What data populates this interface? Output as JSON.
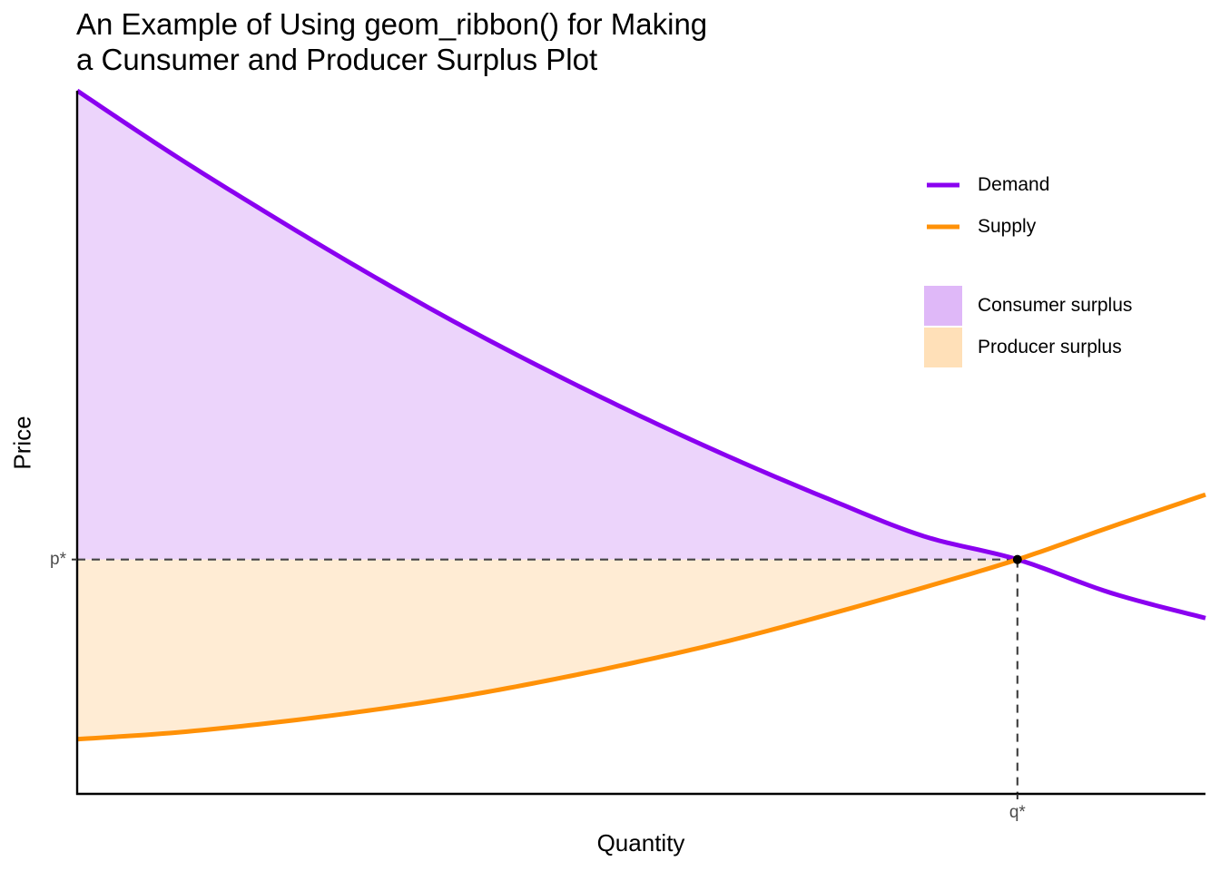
{
  "title_lines": [
    "An Example of Using geom_ribbon() for Making",
    "a Cunsumer and Producer Surplus Plot"
  ],
  "chart_data": {
    "type": "line",
    "title": "An Example of Using geom_ribbon() for Making a Cunsumer and Producer Surplus Plot",
    "xlabel": "Quantity",
    "ylabel": "Price",
    "xlim": [
      0,
      12
    ],
    "ylim": [
      0,
      9
    ],
    "x_ticks": [
      {
        "value": 10,
        "label": "q*"
      }
    ],
    "y_ticks": [
      {
        "value": 3,
        "label": "p*"
      }
    ],
    "series": [
      {
        "name": "Demand",
        "color": "#8A00F0",
        "x": [
          0,
          1,
          2,
          3,
          4,
          5,
          6,
          7,
          8,
          9,
          10,
          11,
          12
        ],
        "y": [
          9.0,
          8.2,
          7.45,
          6.73,
          6.05,
          5.42,
          4.83,
          4.28,
          3.77,
          3.3,
          3.0,
          2.57,
          2.25
        ]
      },
      {
        "name": "Supply",
        "color": "#FF9107",
        "x": [
          0,
          1,
          2,
          3,
          4,
          5,
          6,
          7,
          8,
          9,
          10,
          11,
          12
        ],
        "y": [
          0.7,
          0.78,
          0.9,
          1.05,
          1.23,
          1.45,
          1.7,
          1.98,
          2.3,
          2.64,
          3.0,
          3.42,
          3.83
        ]
      }
    ],
    "areas": [
      {
        "name": "Consumer surplus",
        "color": "#DFB8F8",
        "between": [
          "Demand",
          "p*"
        ],
        "x_range": [
          0,
          10
        ]
      },
      {
        "name": "Producer surplus",
        "color": "#FFE0B8",
        "between": [
          "p*",
          "Supply"
        ],
        "x_range": [
          0,
          10
        ]
      }
    ],
    "equilibrium": {
      "x": 10,
      "y": 3
    },
    "legend_position": "top-right",
    "grid": false
  }
}
